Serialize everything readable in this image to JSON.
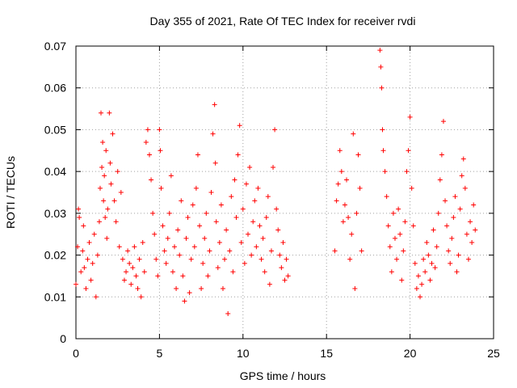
{
  "chart_data": {
    "type": "scatter",
    "title": "Day 355 of 2021, Rate Of TEC Index for receiver rvdi",
    "xlabel": "GPS time / hours",
    "ylabel": "ROTI / TECUs",
    "xlim": [
      0,
      25
    ],
    "ylim": [
      0,
      0.07
    ],
    "x_ticks": [
      "0",
      "5",
      "10",
      "15",
      "20",
      "25"
    ],
    "y_ticks": [
      "0",
      "0.01",
      "0.02",
      "0.03",
      "0.04",
      "0.05",
      "0.06",
      "0.07"
    ],
    "grid": true,
    "marker": "+",
    "color": "#ff0000",
    "series": [
      {
        "points": [
          [
            0.0,
            0.013
          ],
          [
            0.1,
            0.022
          ],
          [
            0.15,
            0.031
          ],
          [
            0.2,
            0.029
          ],
          [
            0.3,
            0.016
          ],
          [
            0.4,
            0.021
          ],
          [
            0.45,
            0.027
          ],
          [
            0.5,
            0.017
          ],
          [
            0.6,
            0.012
          ],
          [
            0.7,
            0.019
          ],
          [
            0.8,
            0.023
          ],
          [
            0.9,
            0.014
          ],
          [
            1.0,
            0.018
          ],
          [
            1.1,
            0.025
          ],
          [
            1.2,
            0.01
          ],
          [
            1.3,
            0.02
          ],
          [
            1.4,
            0.028
          ],
          [
            1.45,
            0.036
          ],
          [
            1.5,
            0.054
          ],
          [
            1.55,
            0.041
          ],
          [
            1.6,
            0.047
          ],
          [
            1.65,
            0.033
          ],
          [
            1.7,
            0.039
          ],
          [
            1.75,
            0.029
          ],
          [
            1.8,
            0.045
          ],
          [
            1.85,
            0.024
          ],
          [
            1.9,
            0.031
          ],
          [
            2.0,
            0.054
          ],
          [
            2.05,
            0.042
          ],
          [
            2.1,
            0.037
          ],
          [
            2.2,
            0.049
          ],
          [
            2.3,
            0.033
          ],
          [
            2.4,
            0.028
          ],
          [
            2.5,
            0.04
          ],
          [
            2.6,
            0.022
          ],
          [
            2.7,
            0.035
          ],
          [
            2.8,
            0.019
          ],
          [
            2.9,
            0.014
          ],
          [
            3.0,
            0.016
          ],
          [
            3.1,
            0.021
          ],
          [
            3.2,
            0.018
          ],
          [
            3.3,
            0.013
          ],
          [
            3.4,
            0.017
          ],
          [
            3.5,
            0.022
          ],
          [
            3.6,
            0.015
          ],
          [
            3.7,
            0.012
          ],
          [
            3.8,
            0.019
          ],
          [
            3.9,
            0.01
          ],
          [
            4.0,
            0.023
          ],
          [
            4.1,
            0.016
          ],
          [
            4.2,
            0.047
          ],
          [
            4.3,
            0.05
          ],
          [
            4.4,
            0.044
          ],
          [
            4.5,
            0.038
          ],
          [
            4.6,
            0.03
          ],
          [
            4.7,
            0.025
          ],
          [
            4.8,
            0.019
          ],
          [
            4.9,
            0.015
          ],
          [
            5.0,
            0.05
          ],
          [
            5.05,
            0.045
          ],
          [
            5.1,
            0.036
          ],
          [
            5.2,
            0.027
          ],
          [
            5.3,
            0.021
          ],
          [
            5.4,
            0.018
          ],
          [
            5.5,
            0.024
          ],
          [
            5.6,
            0.03
          ],
          [
            5.7,
            0.039
          ],
          [
            5.8,
            0.016
          ],
          [
            5.9,
            0.022
          ],
          [
            6.0,
            0.012
          ],
          [
            6.1,
            0.026
          ],
          [
            6.2,
            0.02
          ],
          [
            6.3,
            0.033
          ],
          [
            6.4,
            0.015
          ],
          [
            6.5,
            0.009
          ],
          [
            6.6,
            0.024
          ],
          [
            6.7,
            0.029
          ],
          [
            6.8,
            0.011
          ],
          [
            6.9,
            0.019
          ],
          [
            7.0,
            0.032
          ],
          [
            7.1,
            0.022
          ],
          [
            7.2,
            0.036
          ],
          [
            7.3,
            0.044
          ],
          [
            7.4,
            0.027
          ],
          [
            7.5,
            0.012
          ],
          [
            7.6,
            0.018
          ],
          [
            7.7,
            0.024
          ],
          [
            7.8,
            0.03
          ],
          [
            7.9,
            0.015
          ],
          [
            8.0,
            0.021
          ],
          [
            8.1,
            0.035
          ],
          [
            8.2,
            0.049
          ],
          [
            8.3,
            0.056
          ],
          [
            8.35,
            0.042
          ],
          [
            8.4,
            0.028
          ],
          [
            8.5,
            0.017
          ],
          [
            8.6,
            0.023
          ],
          [
            8.7,
            0.032
          ],
          [
            8.8,
            0.012
          ],
          [
            8.9,
            0.019
          ],
          [
            9.0,
            0.026
          ],
          [
            9.1,
            0.006
          ],
          [
            9.2,
            0.021
          ],
          [
            9.3,
            0.034
          ],
          [
            9.4,
            0.016
          ],
          [
            9.5,
            0.038
          ],
          [
            9.6,
            0.029
          ],
          [
            9.7,
            0.044
          ],
          [
            9.8,
            0.051
          ],
          [
            9.9,
            0.023
          ],
          [
            10.0,
            0.031
          ],
          [
            10.1,
            0.018
          ],
          [
            10.2,
            0.037
          ],
          [
            10.3,
            0.025
          ],
          [
            10.4,
            0.041
          ],
          [
            10.5,
            0.02
          ],
          [
            10.6,
            0.028
          ],
          [
            10.7,
            0.033
          ],
          [
            10.8,
            0.022
          ],
          [
            10.9,
            0.036
          ],
          [
            11.0,
            0.027
          ],
          [
            11.1,
            0.019
          ],
          [
            11.2,
            0.024
          ],
          [
            11.3,
            0.016
          ],
          [
            11.4,
            0.029
          ],
          [
            11.5,
            0.034
          ],
          [
            11.6,
            0.013
          ],
          [
            11.7,
            0.021
          ],
          [
            11.8,
            0.041
          ],
          [
            11.9,
            0.05
          ],
          [
            12.0,
            0.031
          ],
          [
            12.1,
            0.026
          ],
          [
            12.2,
            0.02
          ],
          [
            12.3,
            0.017
          ],
          [
            12.4,
            0.023
          ],
          [
            12.5,
            0.014
          ],
          [
            12.6,
            0.019
          ],
          [
            12.7,
            0.015
          ],
          [
            15.5,
            0.021
          ],
          [
            15.6,
            0.033
          ],
          [
            15.7,
            0.037
          ],
          [
            15.8,
            0.045
          ],
          [
            15.9,
            0.04
          ],
          [
            16.0,
            0.028
          ],
          [
            16.1,
            0.032
          ],
          [
            16.2,
            0.038
          ],
          [
            16.3,
            0.029
          ],
          [
            16.4,
            0.019
          ],
          [
            16.5,
            0.025
          ],
          [
            16.6,
            0.049
          ],
          [
            16.7,
            0.012
          ],
          [
            16.8,
            0.03
          ],
          [
            16.9,
            0.044
          ],
          [
            17.0,
            0.036
          ],
          [
            17.1,
            0.021
          ],
          [
            18.2,
            0.069
          ],
          [
            18.25,
            0.065
          ],
          [
            18.3,
            0.06
          ],
          [
            18.35,
            0.05
          ],
          [
            18.4,
            0.045
          ],
          [
            18.5,
            0.04
          ],
          [
            18.6,
            0.034
          ],
          [
            18.7,
            0.027
          ],
          [
            18.8,
            0.022
          ],
          [
            18.9,
            0.016
          ],
          [
            19.0,
            0.03
          ],
          [
            19.1,
            0.024
          ],
          [
            19.2,
            0.019
          ],
          [
            19.3,
            0.031
          ],
          [
            19.4,
            0.025
          ],
          [
            19.5,
            0.014
          ],
          [
            19.6,
            0.021
          ],
          [
            19.7,
            0.028
          ],
          [
            19.8,
            0.04
          ],
          [
            19.9,
            0.045
          ],
          [
            20.0,
            0.053
          ],
          [
            20.1,
            0.036
          ],
          [
            20.2,
            0.027
          ],
          [
            20.3,
            0.018
          ],
          [
            20.4,
            0.012
          ],
          [
            20.5,
            0.015
          ],
          [
            20.6,
            0.01
          ],
          [
            20.7,
            0.013
          ],
          [
            20.8,
            0.019
          ],
          [
            20.9,
            0.016
          ],
          [
            21.0,
            0.023
          ],
          [
            21.1,
            0.02
          ],
          [
            21.2,
            0.014
          ],
          [
            21.3,
            0.018
          ],
          [
            21.4,
            0.026
          ],
          [
            21.5,
            0.017
          ],
          [
            21.6,
            0.022
          ],
          [
            21.7,
            0.03
          ],
          [
            21.8,
            0.038
          ],
          [
            21.9,
            0.044
          ],
          [
            22.0,
            0.052
          ],
          [
            22.1,
            0.033
          ],
          [
            22.2,
            0.027
          ],
          [
            22.3,
            0.021
          ],
          [
            22.4,
            0.018
          ],
          [
            22.5,
            0.024
          ],
          [
            22.6,
            0.029
          ],
          [
            22.7,
            0.034
          ],
          [
            22.8,
            0.016
          ],
          [
            22.9,
            0.02
          ],
          [
            23.0,
            0.031
          ],
          [
            23.1,
            0.039
          ],
          [
            23.2,
            0.043
          ],
          [
            23.3,
            0.036
          ],
          [
            23.4,
            0.025
          ],
          [
            23.5,
            0.019
          ],
          [
            23.6,
            0.028
          ],
          [
            23.7,
            0.023
          ],
          [
            23.8,
            0.032
          ],
          [
            23.9,
            0.026
          ]
        ]
      }
    ]
  }
}
